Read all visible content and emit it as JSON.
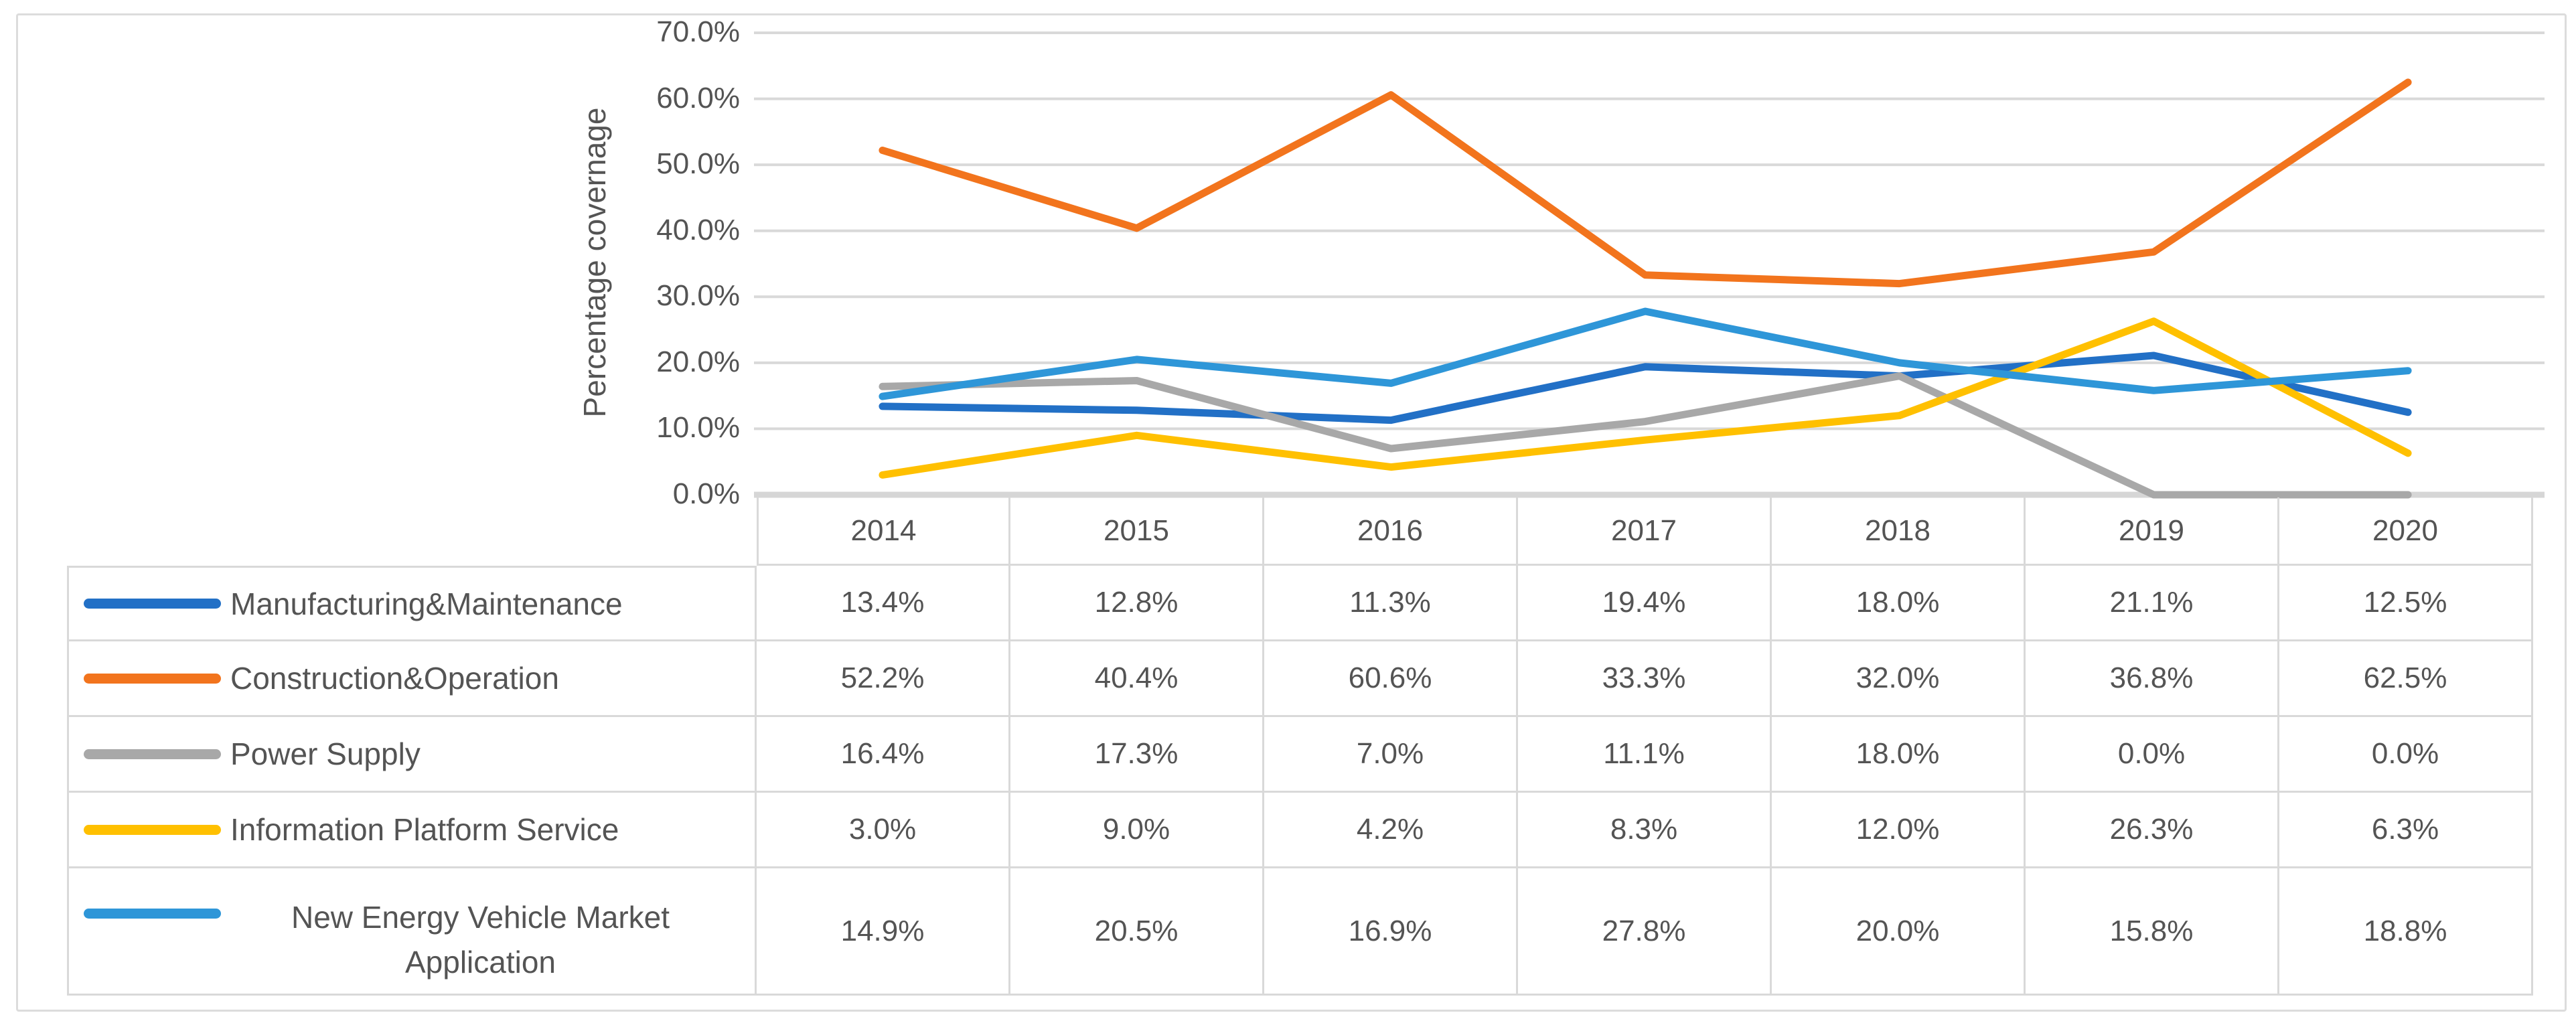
{
  "figure": {
    "title": "",
    "background": "#ffffff",
    "frame_border_color": "#DCDCDC"
  },
  "chart_data": {
    "type": "line",
    "title": "",
    "xlabel": "",
    "ylabel": "Percentage covernage",
    "categories": [
      "2014",
      "2015",
      "2016",
      "2017",
      "2018",
      "2019",
      "2020"
    ],
    "series": [
      {
        "name": "Manufacturing&Maintenance",
        "color": "#2270C6",
        "values": [
          13.4,
          12.8,
          11.3,
          19.4,
          18.0,
          21.1,
          12.5
        ]
      },
      {
        "name": "Construction&Operation",
        "color": "#F2741D",
        "values": [
          52.2,
          40.4,
          60.6,
          33.3,
          32.0,
          36.8,
          62.5
        ]
      },
      {
        "name": "Power Supply",
        "color": "#A8A8A8",
        "values": [
          16.4,
          17.3,
          7.0,
          11.1,
          18.0,
          0.0,
          0.0
        ]
      },
      {
        "name": "Information Platform Service",
        "color": "#FFC000",
        "values": [
          3.0,
          9.0,
          4.2,
          8.3,
          12.0,
          26.3,
          6.3
        ]
      },
      {
        "name": "New Energy Vehicle Market Application",
        "color": "#2E96D8",
        "values": [
          14.9,
          20.5,
          16.9,
          27.8,
          20.0,
          15.8,
          18.8
        ]
      }
    ],
    "ylim": [
      0,
      70
    ],
    "ytick_step": 10,
    "ytick_labels": [
      "0.0%",
      "10.0%",
      "20.0%",
      "30.0%",
      "40.0%",
      "50.0%",
      "60.0%",
      "70.0%"
    ],
    "value_format": "one-decimal-percent",
    "grid": "horizontal",
    "legend_position": "data-table-left"
  },
  "colors": {
    "gridline": "#D9D9D9",
    "axis_line": "#D6D6D6",
    "table_border": "#D9D9D9",
    "text": "#545454"
  }
}
